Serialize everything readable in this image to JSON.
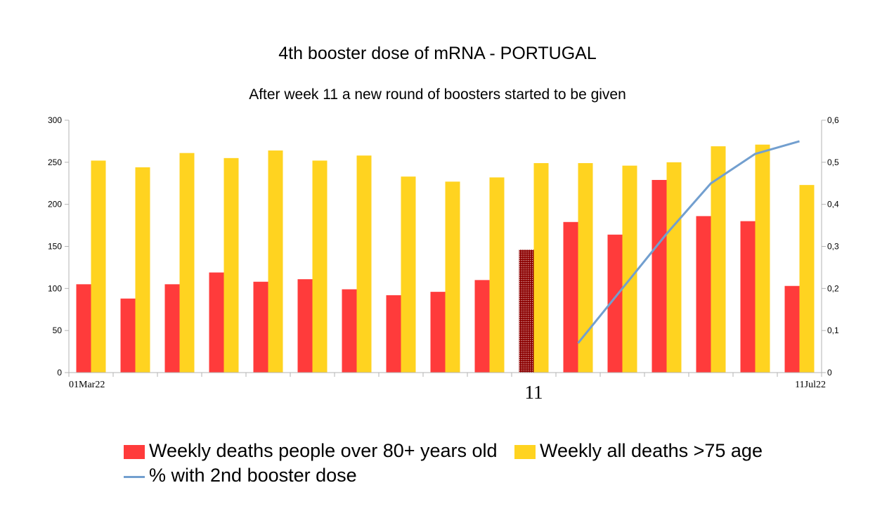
{
  "chart_data": {
    "type": "bar",
    "title": "4th booster dose of mRNA - PORTUGAL",
    "subtitle": "After week 11 a new round of boosters started to be given",
    "x_tick_labels": [
      "01Mar22",
      "11",
      "11Jul22"
    ],
    "y_left": {
      "range": [
        0,
        300
      ],
      "ticks": [
        "0",
        "50",
        "100",
        "150",
        "200",
        "250",
        "300"
      ]
    },
    "y_right": {
      "range": [
        0,
        0.6
      ],
      "ticks": [
        "0",
        "0,1",
        "0,2",
        "0,3",
        "0,4",
        "0,5",
        "0,6"
      ]
    },
    "grid": false,
    "legend_position": "bottom",
    "highlight_index": 10,
    "series": [
      {
        "name": "Weekly deaths people over 80+ years old",
        "kind": "bar",
        "color": "#ff3b3b",
        "values": [
          105,
          88,
          105,
          119,
          108,
          111,
          99,
          92,
          96,
          110,
          146,
          179,
          164,
          229,
          186,
          180,
          103
        ]
      },
      {
        "name": "Weekly all deaths >75 age",
        "kind": "bar",
        "color": "#ffd320",
        "values": [
          252,
          244,
          261,
          255,
          264,
          252,
          258,
          233,
          227,
          232,
          249,
          249,
          246,
          250,
          269,
          271,
          223
        ]
      },
      {
        "name": "% with 2nd booster dose",
        "kind": "line",
        "axis": "right",
        "color": "#729fcf",
        "values": [
          null,
          null,
          null,
          null,
          null,
          null,
          null,
          null,
          null,
          null,
          null,
          0.07,
          0.2,
          0.33,
          0.45,
          0.52,
          0.55
        ]
      }
    ]
  }
}
